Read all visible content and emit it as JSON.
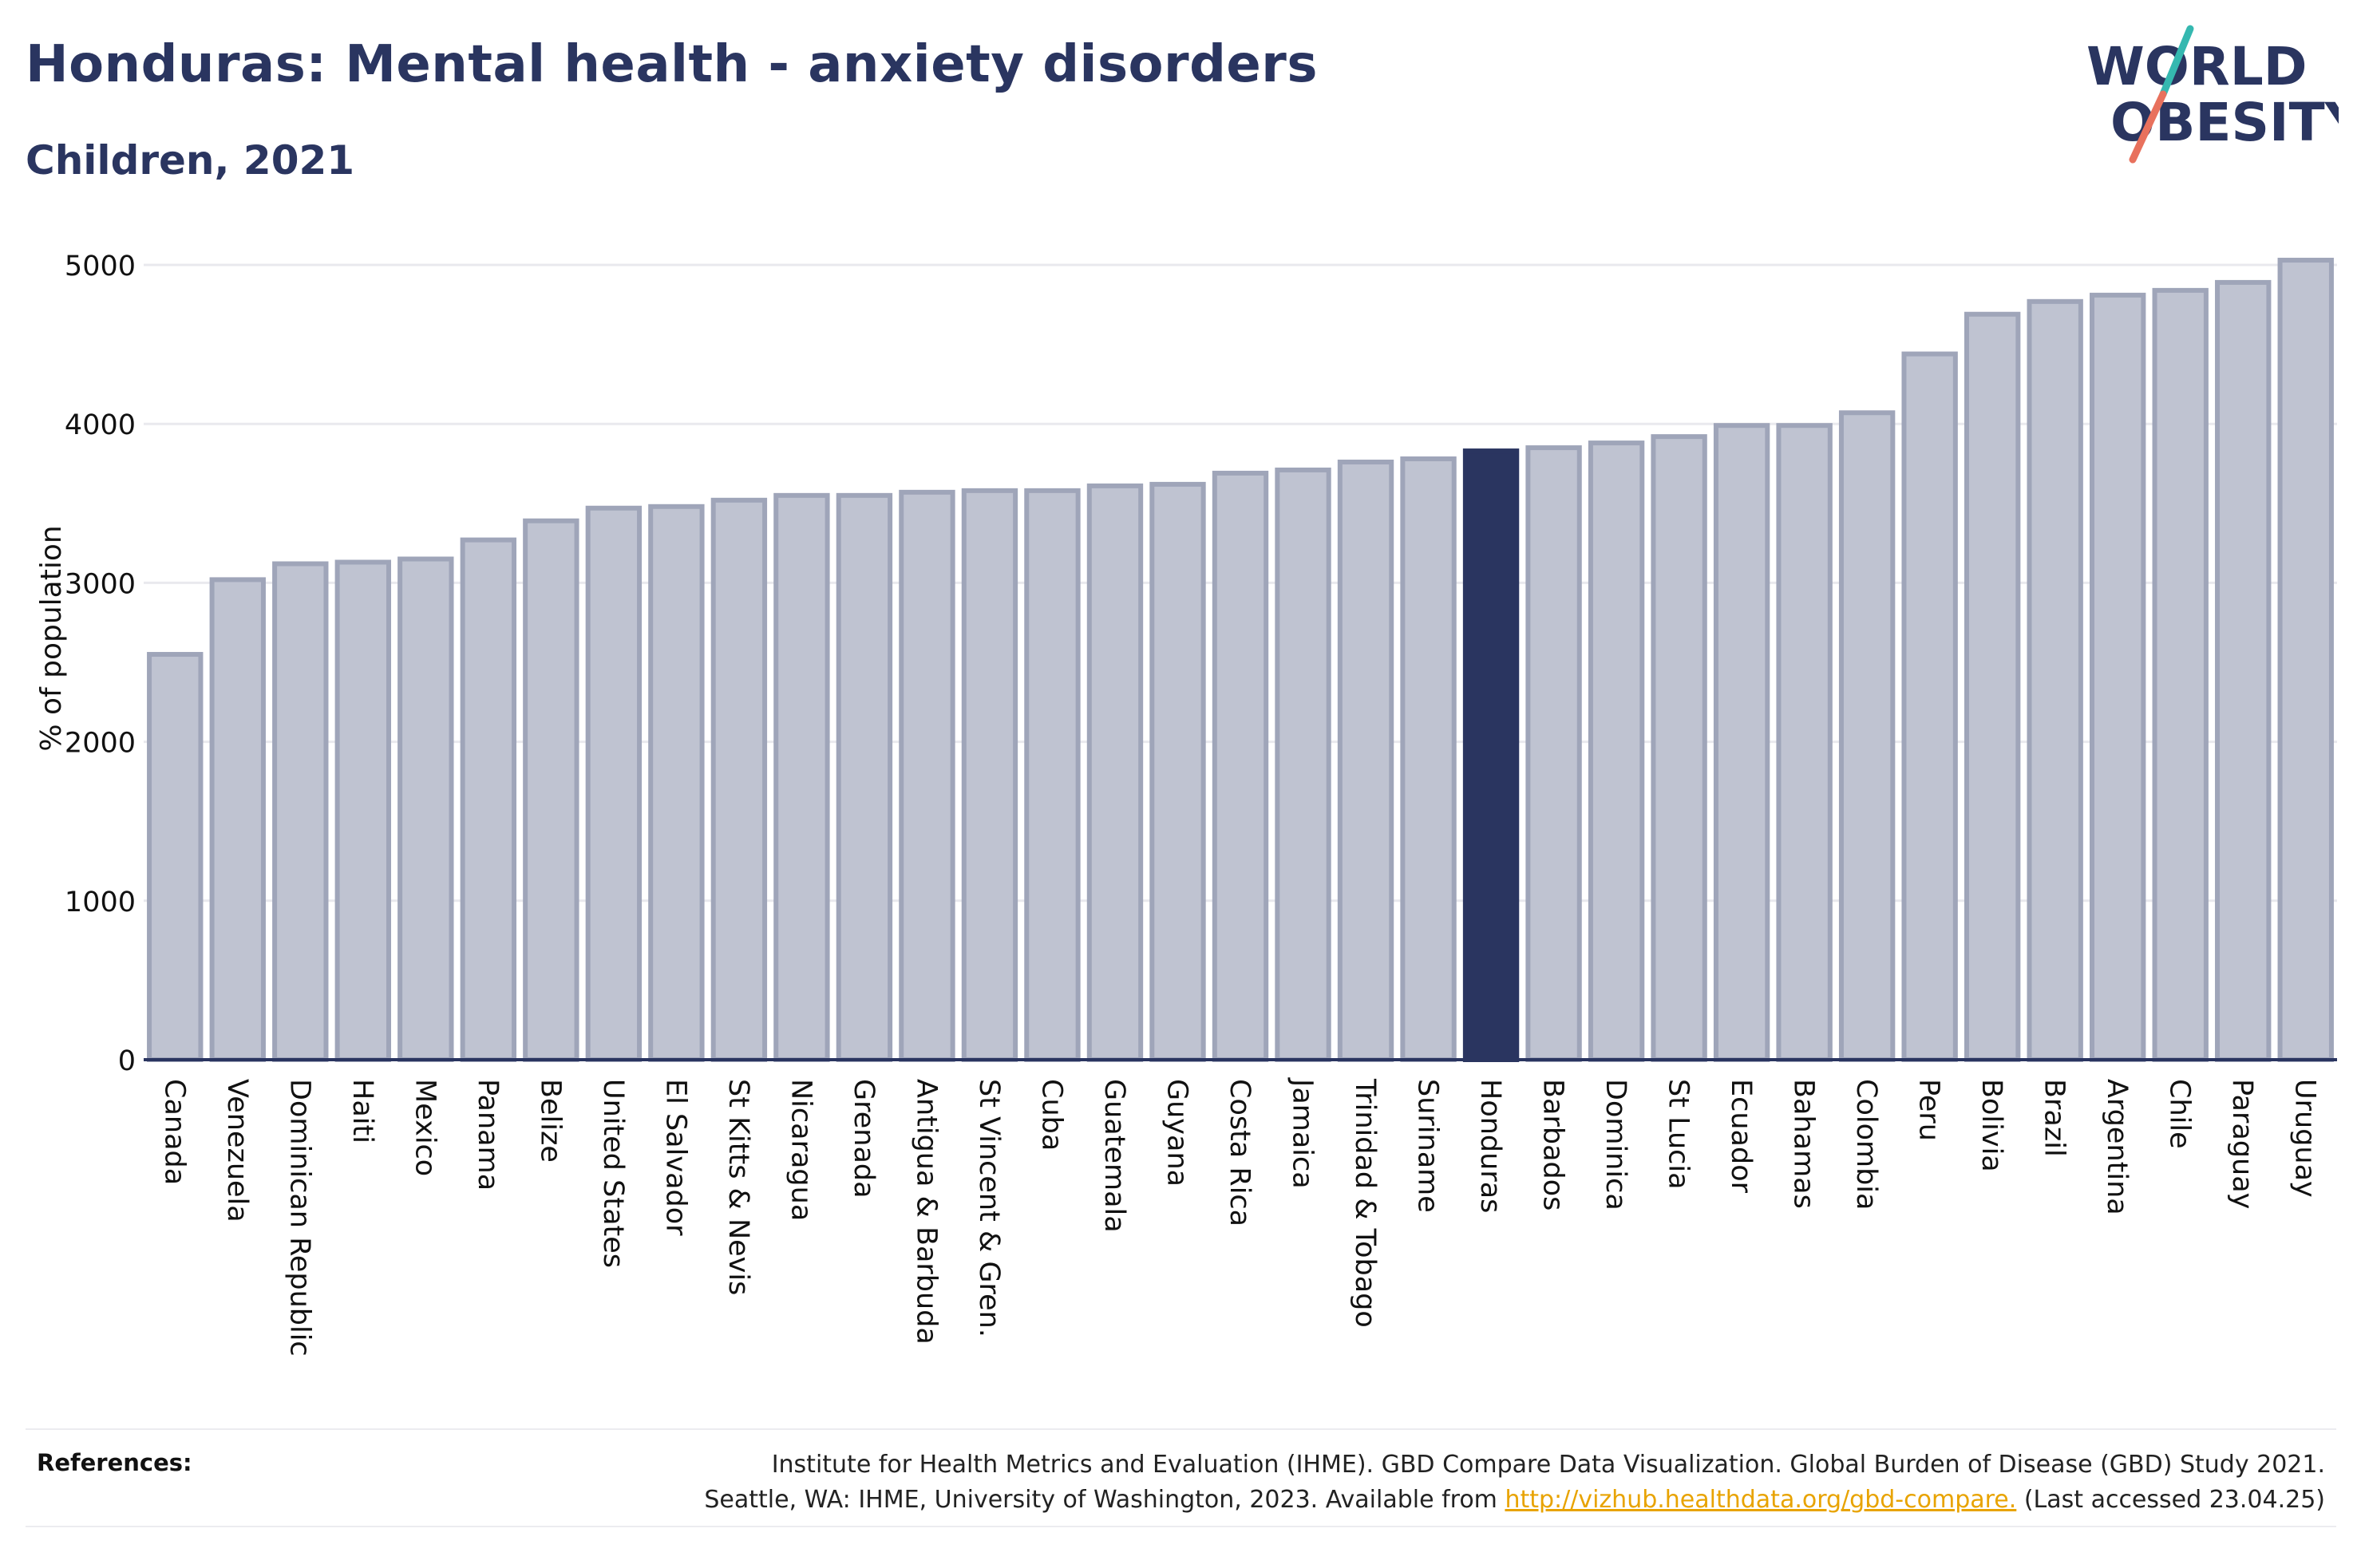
{
  "title": "Honduras: Mental health - anxiety disorders",
  "subtitle": "Children, 2021",
  "logo": {
    "line1": "WORLD",
    "line2": "OBESITY",
    "accent_teal": "#35b8b0",
    "accent_coral": "#e8715d",
    "text_color": "#2a3560"
  },
  "colors": {
    "bar": "#bfc3d1",
    "bar_border": "#9fa5b9",
    "highlight": "#2a3560",
    "grid": "#e9e9ee",
    "axis": "#2a3560"
  },
  "chart_data": {
    "type": "bar",
    "ylabel": "% of population",
    "ylim": [
      0,
      5000
    ],
    "yticks": [
      0,
      1000,
      2000,
      3000,
      4000,
      5000
    ],
    "grid": true,
    "highlight": "Honduras",
    "categories": [
      "Canada",
      "Venezuela",
      "Dominican Republic",
      "Haiti",
      "Mexico",
      "Panama",
      "Belize",
      "United States",
      "El Salvador",
      "St Kitts & Nevis",
      "Nicaragua",
      "Grenada",
      "Antigua & Barbuda",
      "St Vincent & Gren.",
      "Cuba",
      "Guatemala",
      "Guyana",
      "Costa Rica",
      "Jamaica",
      "Trinidad & Tobago",
      "Suriname",
      "Honduras",
      "Barbados",
      "Dominica",
      "St Lucia",
      "Ecuador",
      "Bahamas",
      "Colombia",
      "Peru",
      "Bolivia",
      "Brazil",
      "Argentina",
      "Chile",
      "Paraguay",
      "Uruguay"
    ],
    "values": [
      2550,
      3020,
      3120,
      3130,
      3150,
      3270,
      3390,
      3470,
      3480,
      3520,
      3550,
      3550,
      3570,
      3580,
      3580,
      3610,
      3620,
      3690,
      3710,
      3760,
      3780,
      3830,
      3850,
      3880,
      3920,
      3990,
      3990,
      4070,
      4440,
      4690,
      4770,
      4810,
      4840,
      4890,
      5030
    ]
  },
  "references": {
    "label": "References:",
    "line1": "Institute for Health Metrics and Evaluation (IHME). GBD Compare Data Visualization. Global Burden of Disease (GBD) Study 2021.",
    "line2_prefix": "Seattle, WA: IHME, University of Washington, 2023. Available from ",
    "link": "http://vizhub.healthdata.org/gbd-compare.",
    "line2_suffix": " (Last accessed 23.04.25)"
  }
}
